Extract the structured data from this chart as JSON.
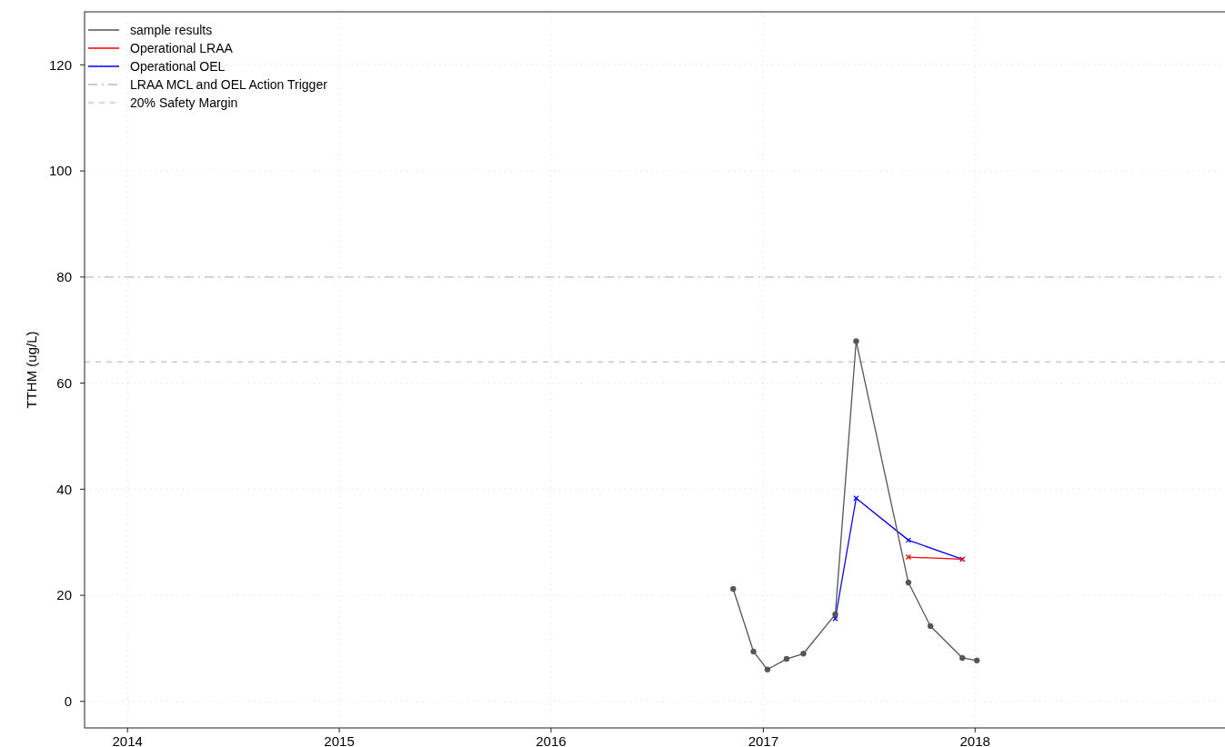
{
  "chart_data": {
    "type": "line",
    "ylabel": "TTHM (ug/L)",
    "xlim": [
      "2013-10-19",
      "2019-03-14"
    ],
    "xticks": [
      "2014",
      "2015",
      "2016",
      "2017",
      "2018"
    ],
    "ylim": [
      -5,
      130
    ],
    "yticks": [
      0,
      20,
      40,
      60,
      80,
      100,
      120
    ],
    "grid": true,
    "legend": "top left",
    "series": [
      {
        "name": "sample results",
        "color": "#555555",
        "marker": "circle",
        "x": [
          "2016-11-10",
          "2016-12-15",
          "2017-01-08",
          "2017-02-10",
          "2017-03-11",
          "2017-05-05",
          "2017-06-10",
          "2017-09-08",
          "2017-10-16",
          "2017-12-10",
          "2018-01-04"
        ],
        "values": [
          21.2,
          9.4,
          6.0,
          8.0,
          9.0,
          16.4,
          67.9,
          22.4,
          14.2,
          8.2,
          7.7
        ]
      },
      {
        "name": "Operational LRAA",
        "color": "#ff0000",
        "marker": "cross",
        "x": [
          "2017-09-08",
          "2017-12-10"
        ],
        "values": [
          27.2,
          26.8
        ]
      },
      {
        "name": "Operational OEL",
        "color": "#0000ff",
        "marker": "cross",
        "x": [
          "2017-05-05",
          "2017-06-10",
          "2017-09-08",
          "2017-12-10"
        ],
        "values": [
          15.6,
          38.3,
          30.4,
          26.8
        ]
      }
    ],
    "ref_lines": [
      {
        "axis": "y",
        "value": 80,
        "label": "LRAA MCL and OEL Action Trigger",
        "color": "#bbbbbb",
        "line_style": "dashdot"
      },
      {
        "axis": "y",
        "value": 64,
        "label": "20% Safety Margin",
        "color": "#cccccc",
        "line_style": "dashed"
      }
    ]
  }
}
